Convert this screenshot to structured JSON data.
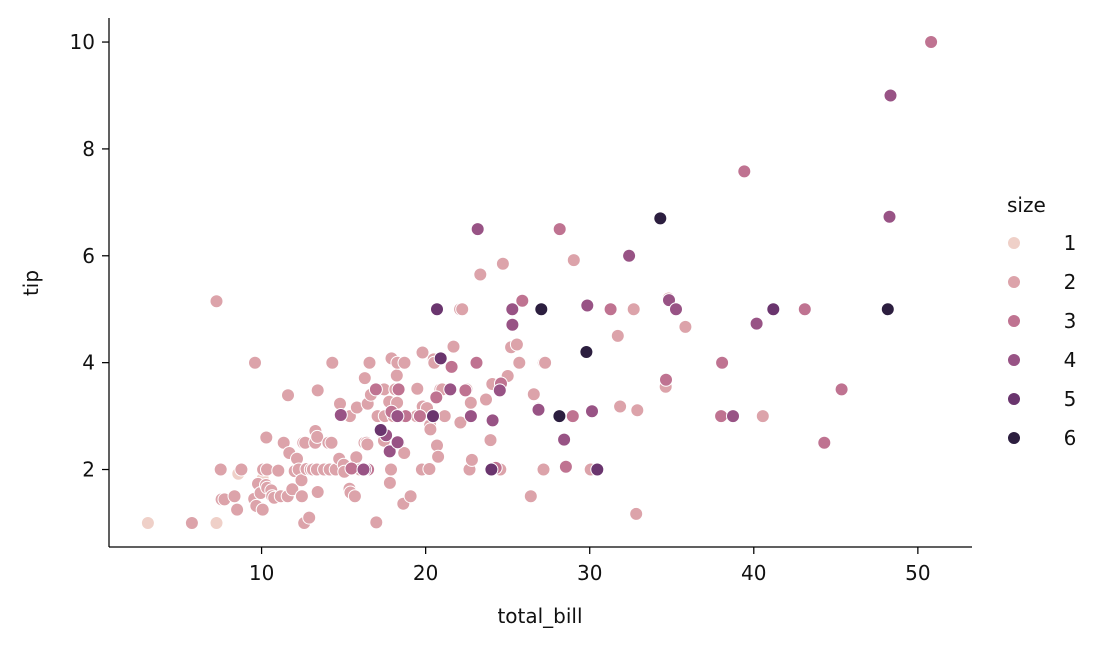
{
  "chart_data": {
    "type": "scatter",
    "xlabel": "total_bill",
    "ylabel": "tip",
    "xlim": [
      0.7,
      53.3
    ],
    "ylim": [
      0.55,
      10.45
    ],
    "xticks": [
      10,
      20,
      30,
      40,
      50
    ],
    "yticks": [
      2,
      4,
      6,
      8,
      10
    ],
    "grid": false,
    "legend": {
      "title": "size",
      "placement": "right",
      "entries": [
        {
          "label": "1",
          "color": "#efd0c8"
        },
        {
          "label": "2",
          "color": "#dca3aa"
        },
        {
          "label": "3",
          "color": "#bf7391"
        },
        {
          "label": "4",
          "color": "#985385"
        },
        {
          "label": "5",
          "color": "#6a356e"
        },
        {
          "label": "6",
          "color": "#2c1e3f"
        }
      ]
    },
    "series": [
      {
        "name": "1",
        "points": [
          [
            3.07,
            1.0
          ],
          [
            7.25,
            1.0
          ],
          [
            8.58,
            1.92
          ],
          [
            10.07,
            1.83
          ]
        ]
      },
      {
        "name": "2",
        "points": [
          [
            5.75,
            1.0
          ],
          [
            7.25,
            5.15
          ],
          [
            7.51,
            2.0
          ],
          [
            7.56,
            1.44
          ],
          [
            7.74,
            1.44
          ],
          [
            8.35,
            1.5
          ],
          [
            8.51,
            1.25
          ],
          [
            8.77,
            2.0
          ],
          [
            9.55,
            1.45
          ],
          [
            9.6,
            4.0
          ],
          [
            9.68,
            1.32
          ],
          [
            9.78,
            1.73
          ],
          [
            9.94,
            1.56
          ],
          [
            10.07,
            1.25
          ],
          [
            10.09,
            2.0
          ],
          [
            10.27,
            1.71
          ],
          [
            10.29,
            2.6
          ],
          [
            10.33,
            2.0
          ],
          [
            10.34,
            1.66
          ],
          [
            10.59,
            1.61
          ],
          [
            10.65,
            1.5
          ],
          [
            10.77,
            1.47
          ],
          [
            11.02,
            1.98
          ],
          [
            11.17,
            1.5
          ],
          [
            11.35,
            2.5
          ],
          [
            11.59,
            1.5
          ],
          [
            11.61,
            3.39
          ],
          [
            11.69,
            2.31
          ],
          [
            11.87,
            1.63
          ],
          [
            12.02,
            1.97
          ],
          [
            12.16,
            2.2
          ],
          [
            12.26,
            2.0
          ],
          [
            12.43,
            1.8
          ],
          [
            12.46,
            1.5
          ],
          [
            12.54,
            2.5
          ],
          [
            12.6,
            1.0
          ],
          [
            12.66,
            2.5
          ],
          [
            12.74,
            2.01
          ],
          [
            12.9,
            1.1
          ],
          [
            13.0,
            2.0
          ],
          [
            13.13,
            2.0
          ],
          [
            13.27,
            2.5
          ],
          [
            13.28,
            2.72
          ],
          [
            13.37,
            2.0
          ],
          [
            13.39,
            2.61
          ],
          [
            13.42,
            1.58
          ],
          [
            13.42,
            3.48
          ],
          [
            13.81,
            2.0
          ],
          [
            14.07,
            2.5
          ],
          [
            14.15,
            2.0
          ],
          [
            14.26,
            2.5
          ],
          [
            14.31,
            4.0
          ],
          [
            14.52,
            2.0
          ],
          [
            14.73,
            2.2
          ],
          [
            14.78,
            3.23
          ],
          [
            15.01,
            2.09
          ],
          [
            15.04,
            1.96
          ],
          [
            15.36,
            1.64
          ],
          [
            15.38,
            3.0
          ],
          [
            15.42,
            1.57
          ],
          [
            15.69,
            1.5
          ],
          [
            15.77,
            2.23
          ],
          [
            15.81,
            3.16
          ],
          [
            15.95,
            2.0
          ],
          [
            16.0,
            2.0
          ],
          [
            16.27,
            2.5
          ],
          [
            16.29,
            3.71
          ],
          [
            16.31,
            2.0
          ],
          [
            16.4,
            2.5
          ],
          [
            16.45,
            2.47
          ],
          [
            16.47,
            3.23
          ],
          [
            16.58,
            4.0
          ],
          [
            16.66,
            3.4
          ],
          [
            16.99,
            1.01
          ],
          [
            17.07,
            3.0
          ],
          [
            17.29,
            2.71
          ],
          [
            17.31,
            3.5
          ],
          [
            17.46,
            2.54
          ],
          [
            17.47,
            3.5
          ],
          [
            17.51,
            3.0
          ],
          [
            17.78,
            3.27
          ],
          [
            17.82,
            1.75
          ],
          [
            17.89,
            2.0
          ],
          [
            17.92,
            4.08
          ],
          [
            18.04,
            3.0
          ],
          [
            18.15,
            3.5
          ],
          [
            18.24,
            3.76
          ],
          [
            18.26,
            3.25
          ],
          [
            18.28,
            4.0
          ],
          [
            18.29,
            3.0
          ],
          [
            18.35,
            2.5
          ],
          [
            18.43,
            3.0
          ],
          [
            18.64,
            1.36
          ],
          [
            18.69,
            2.31
          ],
          [
            18.71,
            4.0
          ],
          [
            19.08,
            1.5
          ],
          [
            19.44,
            3.0
          ],
          [
            19.49,
            3.51
          ],
          [
            19.77,
            2.0
          ],
          [
            19.81,
            4.19
          ],
          [
            19.82,
            3.18
          ],
          [
            20.08,
            3.15
          ],
          [
            20.23,
            2.01
          ],
          [
            20.27,
            2.83
          ],
          [
            20.29,
            2.75
          ],
          [
            20.45,
            3.0
          ],
          [
            20.49,
            4.06
          ],
          [
            20.53,
            4.0
          ],
          [
            20.65,
            3.35
          ],
          [
            20.69,
            2.45
          ],
          [
            20.76,
            2.24
          ],
          [
            20.9,
            3.5
          ],
          [
            21.01,
            3.5
          ],
          [
            21.16,
            3.0
          ],
          [
            21.7,
            4.3
          ],
          [
            22.1,
            5.0
          ],
          [
            22.12,
            2.88
          ],
          [
            22.23,
            5.0
          ],
          [
            22.42,
            3.48
          ],
          [
            22.49,
            3.5
          ],
          [
            22.67,
            2.0
          ],
          [
            22.75,
            3.25
          ],
          [
            22.82,
            2.18
          ],
          [
            23.1,
            4.0
          ],
          [
            23.17,
            6.5
          ],
          [
            23.33,
            5.65
          ],
          [
            23.68,
            3.31
          ],
          [
            23.95,
            2.55
          ],
          [
            24.01,
            2.0
          ],
          [
            24.06,
            3.6
          ],
          [
            24.55,
            2.0
          ],
          [
            24.59,
            3.61
          ],
          [
            24.71,
            5.85
          ],
          [
            25.0,
            3.75
          ],
          [
            25.21,
            4.29
          ],
          [
            25.29,
            4.71
          ],
          [
            25.56,
            4.34
          ],
          [
            25.71,
            4.0
          ],
          [
            26.41,
            1.5
          ],
          [
            26.59,
            3.41
          ],
          [
            26.86,
            3.14
          ],
          [
            27.05,
            5.0
          ],
          [
            27.18,
            2.0
          ],
          [
            27.2,
            4.0
          ],
          [
            27.28,
            4.0
          ],
          [
            27.28,
            4.0
          ],
          [
            28.15,
            3.0
          ],
          [
            28.44,
            2.56
          ],
          [
            29.03,
            5.92
          ],
          [
            30.06,
            2.0
          ],
          [
            31.71,
            4.5
          ],
          [
            31.85,
            3.18
          ],
          [
            32.68,
            5.0
          ],
          [
            32.9,
            3.11
          ],
          [
            32.83,
            1.17
          ],
          [
            34.63,
            3.55
          ],
          [
            34.81,
            5.2
          ],
          [
            35.83,
            4.67
          ],
          [
            40.55,
            3.0
          ],
          [
            48.17,
            5.0
          ]
        ]
      },
      {
        "name": "3",
        "points": [
          [
            16.97,
            3.5
          ],
          [
            17.92,
            3.08
          ],
          [
            18.35,
            3.5
          ],
          [
            20.65,
            3.35
          ],
          [
            21.58,
            3.92
          ],
          [
            22.42,
            3.48
          ],
          [
            23.1,
            4.0
          ],
          [
            24.59,
            3.61
          ],
          [
            25.89,
            5.16
          ],
          [
            26.88,
            3.12
          ],
          [
            28.17,
            6.5
          ],
          [
            28.97,
            3.0
          ],
          [
            29.85,
            5.07
          ],
          [
            31.27,
            5.0
          ],
          [
            34.65,
            3.68
          ],
          [
            38.01,
            3.0
          ],
          [
            38.07,
            4.0
          ],
          [
            39.42,
            7.58
          ],
          [
            43.11,
            5.0
          ],
          [
            44.3,
            2.5
          ],
          [
            45.35,
            3.5
          ],
          [
            48.33,
            9.0
          ],
          [
            50.81,
            10.0
          ],
          [
            28.55,
            2.05
          ],
          [
            24.27,
            2.03
          ],
          [
            19.65,
            3.0
          ],
          [
            18.78,
            3.0
          ],
          [
            16.49,
            2.0
          ],
          [
            15.48,
            2.02
          ],
          [
            20.69,
            5.0
          ]
        ]
      },
      {
        "name": "4",
        "points": [
          [
            16.31,
            2.0
          ],
          [
            17.59,
            2.64
          ],
          [
            18.28,
            3.0
          ],
          [
            22.76,
            3.0
          ],
          [
            23.17,
            6.5
          ],
          [
            24.52,
            3.48
          ],
          [
            25.28,
            5.0
          ],
          [
            25.29,
            4.71
          ],
          [
            26.88,
            3.12
          ],
          [
            28.44,
            2.56
          ],
          [
            29.85,
            5.07
          ],
          [
            30.14,
            3.09
          ],
          [
            32.4,
            6.0
          ],
          [
            34.83,
            5.17
          ],
          [
            35.26,
            5.0
          ],
          [
            38.73,
            3.0
          ],
          [
            40.17,
            4.73
          ],
          [
            48.27,
            6.73
          ],
          [
            48.33,
            9.0
          ],
          [
            20.69,
            5.0
          ],
          [
            24.08,
            2.92
          ],
          [
            17.81,
            2.34
          ],
          [
            18.29,
            2.51
          ],
          [
            16.21,
            2.0
          ],
          [
            21.5,
            3.5
          ],
          [
            14.83,
            3.02
          ]
        ]
      },
      {
        "name": "5",
        "points": [
          [
            20.69,
            5.0
          ],
          [
            28.15,
            3.0
          ],
          [
            29.8,
            4.2
          ],
          [
            30.46,
            2.0
          ],
          [
            34.3,
            6.7
          ],
          [
            41.19,
            5.0
          ],
          [
            27.05,
            5.0
          ],
          [
            20.92,
            4.08
          ],
          [
            17.26,
            2.74
          ],
          [
            20.45,
            3.0
          ],
          [
            24.01,
            2.0
          ]
        ]
      },
      {
        "name": "6",
        "points": [
          [
            48.17,
            5.0
          ],
          [
            34.3,
            6.7
          ],
          [
            29.8,
            4.2
          ],
          [
            27.05,
            5.0
          ],
          [
            28.15,
            3.0
          ]
        ]
      }
    ]
  }
}
